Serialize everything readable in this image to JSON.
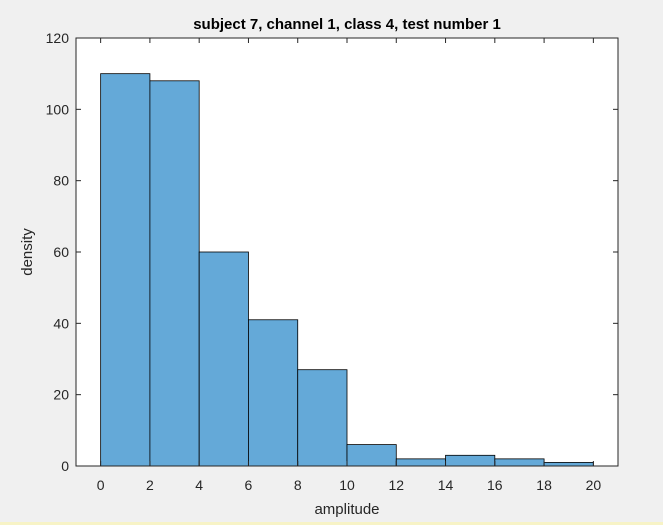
{
  "chart_data": {
    "type": "bar",
    "title": "subject 7, channel 1, class 4, test number 1",
    "xlabel": "amplitude",
    "ylabel": "density",
    "bin_edges": [
      0,
      2,
      4,
      6,
      8,
      10,
      12,
      14,
      16,
      18,
      20
    ],
    "values": [
      110,
      108,
      60,
      41,
      27,
      6,
      2,
      3,
      2,
      1
    ],
    "xlim": [
      -1,
      21
    ],
    "ylim": [
      0,
      120
    ],
    "xticks": [
      "0",
      "2",
      "4",
      "6",
      "8",
      "10",
      "12",
      "14",
      "16",
      "18",
      "20"
    ],
    "yticks": [
      "0",
      "20",
      "40",
      "60",
      "80",
      "100",
      "120"
    ],
    "grid": false,
    "bar_color": "#64a9d8",
    "edge_color": "#000000"
  }
}
